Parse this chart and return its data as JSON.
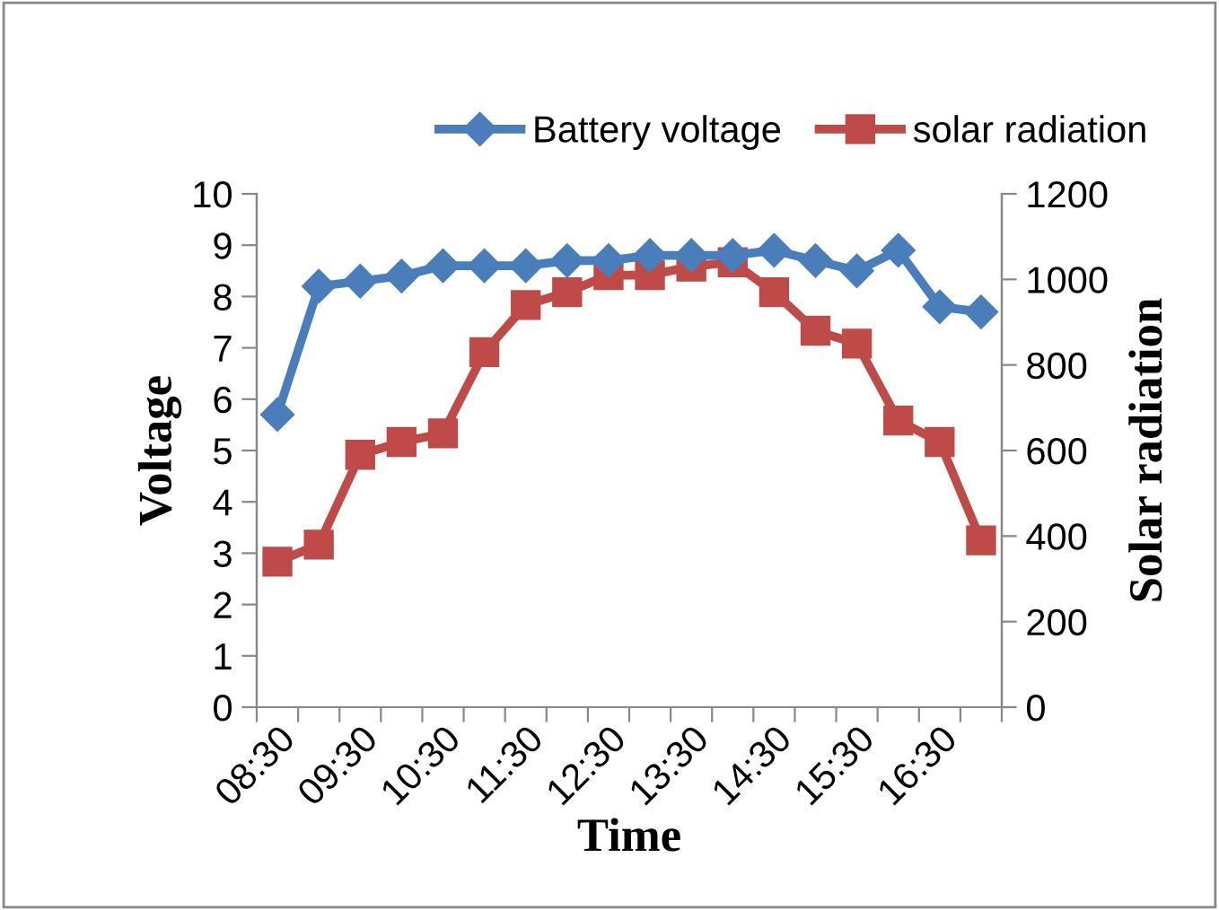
{
  "chart_data": {
    "type": "line",
    "xlabel": "Time",
    "ylabel": "Voltage",
    "y2label": "Solar radiation",
    "categories": [
      "08:30",
      null,
      "09:30",
      null,
      "10:30",
      null,
      "11:30",
      null,
      "12:30",
      null,
      "13:30",
      null,
      "14:30",
      null,
      "15:30",
      null,
      "16:30",
      null
    ],
    "series": [
      {
        "name": "Battery voltage",
        "color": "#4a7ebb",
        "marker": "diamond",
        "values": [
          5.7,
          8.2,
          8.3,
          8.4,
          8.6,
          8.6,
          8.6,
          8.7,
          8.7,
          8.8,
          8.8,
          8.8,
          8.9,
          8.7,
          8.5,
          8.9,
          7.8,
          7.7
        ]
      },
      {
        "name": "solar radiation",
        "color": "#be4b48",
        "marker": "square",
        "axis": "y2",
        "values": [
          340,
          380,
          590,
          620,
          640,
          830,
          940,
          970,
          1010,
          1010,
          1030,
          1040,
          970,
          880,
          850,
          670,
          620,
          390
        ]
      }
    ],
    "ylim": [
      0,
      10
    ],
    "yticks": [
      0,
      1,
      2,
      3,
      4,
      5,
      6,
      7,
      8,
      9,
      10
    ],
    "y2lim": [
      0,
      1200
    ],
    "y2ticks": [
      0,
      200,
      400,
      600,
      800,
      1000,
      1200
    ],
    "grid": false,
    "legend": "top"
  }
}
